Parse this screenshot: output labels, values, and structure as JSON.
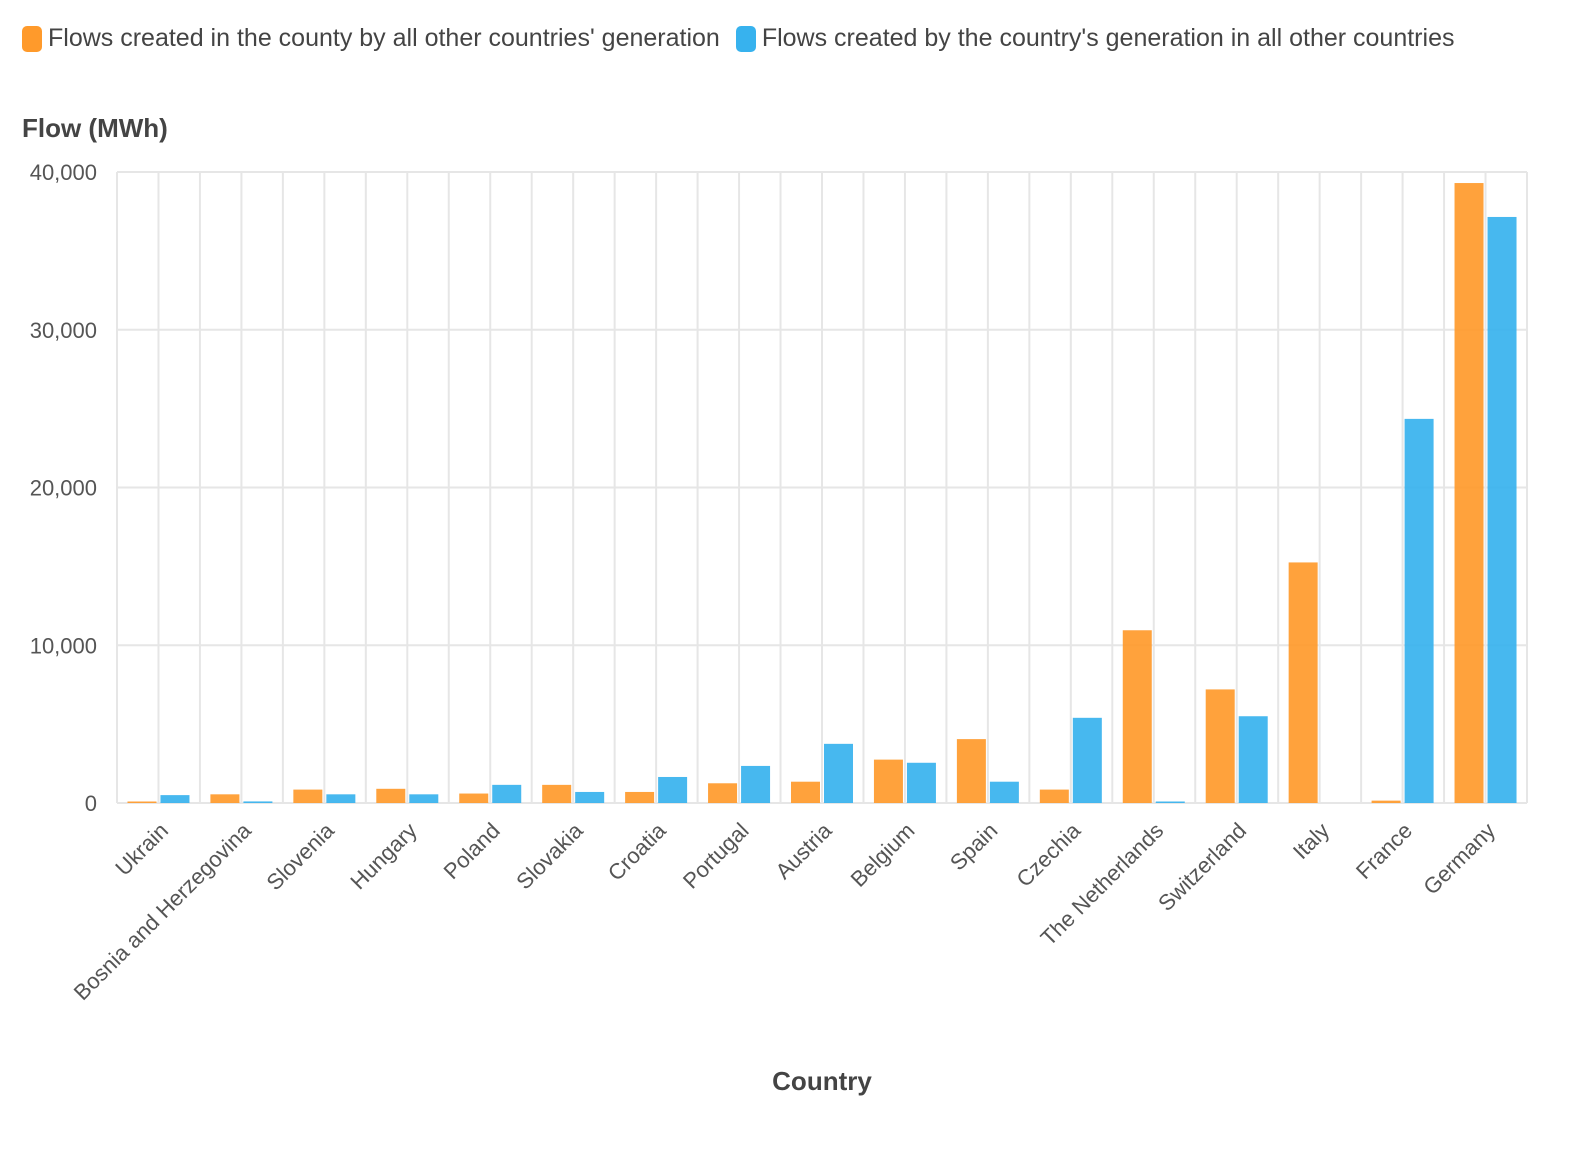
{
  "legend": [
    {
      "label": "Flows created in the county by all other countries' generation",
      "color": "#ff9a2b"
    },
    {
      "label": "Flows created by the country's generation in all other countries",
      "color": "#37b2ee"
    }
  ],
  "chart_data": {
    "type": "bar",
    "title": "",
    "xlabel": "Country",
    "ylabel": "Flow (MWh)",
    "ylim": [
      0,
      40000
    ],
    "yticks": [
      0,
      10000,
      20000,
      30000,
      40000
    ],
    "ytick_labels": [
      "0",
      "10,000",
      "20,000",
      "30,000",
      "40,000"
    ],
    "grid": true,
    "legend_position": "top-left",
    "categories": [
      "Ukrain",
      "Bosnia and Herzegovina",
      "Slovenia",
      "Hungary",
      "Poland",
      "Slovakia",
      "Croatia",
      "Portugal",
      "Austria",
      "Belgium",
      "Spain",
      "Czechia",
      "The Netherlands",
      "Switzerland",
      "Italy",
      "France",
      "Germany"
    ],
    "series": [
      {
        "name": "Flows created in the county by all other countries' generation",
        "color": "#ff9a2b",
        "values": [
          60,
          550,
          850,
          900,
          600,
          1150,
          700,
          1250,
          1350,
          2750,
          4050,
          850,
          10950,
          7200,
          15250,
          150,
          39300
        ]
      },
      {
        "name": "Flows created by the country's generation in all other countries",
        "color": "#37b2ee",
        "values": [
          500,
          100,
          550,
          550,
          1150,
          700,
          1650,
          2350,
          3750,
          2550,
          1350,
          5400,
          50,
          5500,
          0,
          24350,
          37150
        ]
      }
    ]
  }
}
